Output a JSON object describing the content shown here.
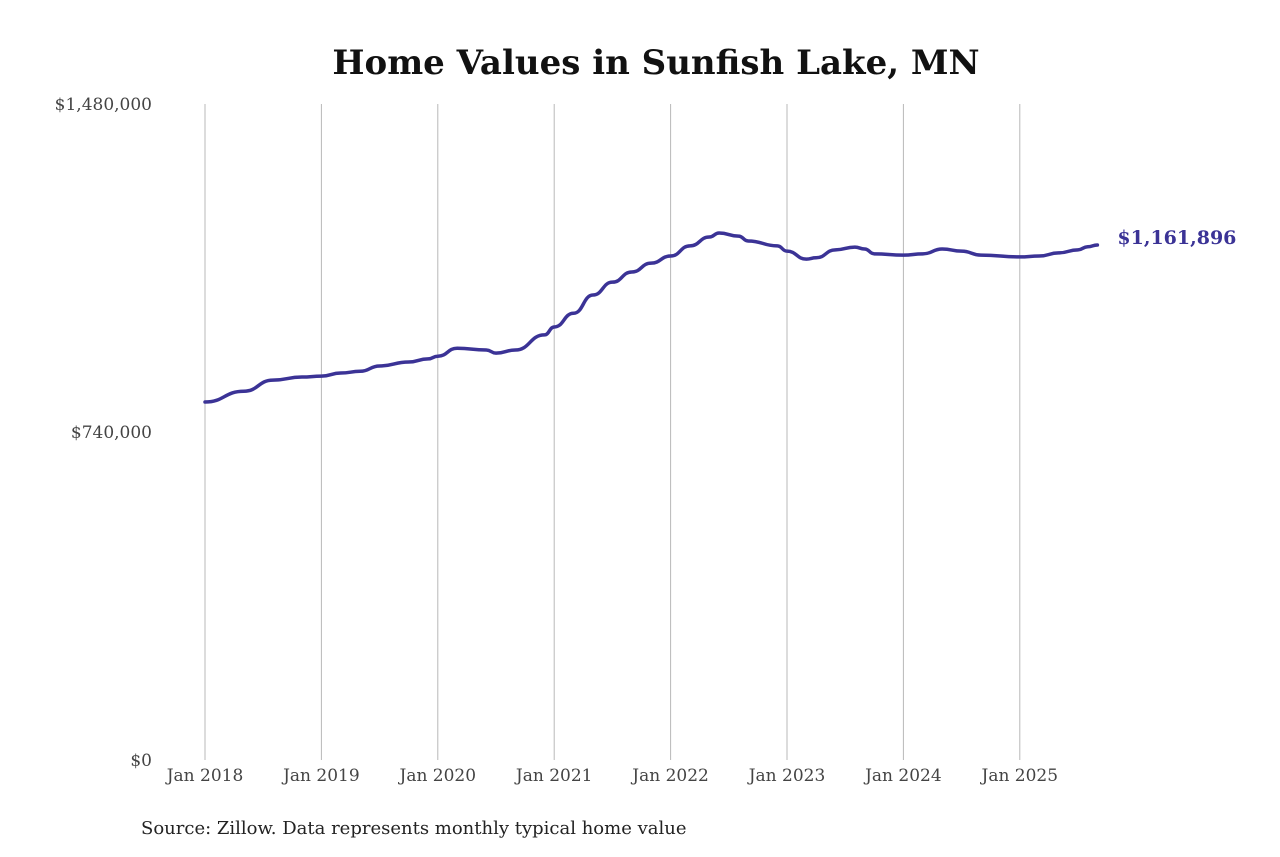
{
  "chart_data": {
    "type": "line",
    "title": "Home Values in Sunfish Lake, MN",
    "xlabel": "",
    "ylabel": "",
    "ylim": [
      0,
      1480000
    ],
    "y_ticks": [
      0,
      740000,
      1480000
    ],
    "y_tick_labels": [
      "$0",
      "$740,000",
      "$1,480,000"
    ],
    "x_ticks": [
      "2018-01",
      "2019-01",
      "2020-01",
      "2021-01",
      "2022-01",
      "2023-01",
      "2024-01",
      "2025-01"
    ],
    "x_tick_labels": [
      "Jan 2018",
      "Jan 2019",
      "Jan 2020",
      "Jan 2021",
      "Jan 2022",
      "Jan 2023",
      "Jan 2024",
      "Jan 2025"
    ],
    "grid": "vertical",
    "line_color": "#3b3396",
    "end_label": "$1,161,896",
    "series": [
      {
        "x": [
          "2018-01",
          "2018-05",
          "2018-08",
          "2018-11",
          "2019-01",
          "2019-03",
          "2019-05",
          "2019-07",
          "2019-10",
          "2019-12",
          "2020-01",
          "2020-03",
          "2020-06",
          "2020-07",
          "2020-09",
          "2020-12",
          "2021-01",
          "2021-03",
          "2021-05",
          "2021-07",
          "2021-09",
          "2021-11",
          "2022-01",
          "2022-03",
          "2022-05",
          "2022-06",
          "2022-08",
          "2022-09",
          "2022-12",
          "2023-01",
          "2023-03",
          "2023-04",
          "2023-06",
          "2023-08",
          "2023-09",
          "2023-10",
          "2024-01",
          "2024-03",
          "2024-05",
          "2024-07",
          "2024-09",
          "2025-01",
          "2025-03",
          "2025-05",
          "2025-07",
          "2025-08",
          "2025-09"
        ],
        "values": [
          807700,
          832000,
          857000,
          864000,
          866000,
          873000,
          877000,
          889000,
          898000,
          905000,
          911000,
          929000,
          925000,
          918000,
          925000,
          959000,
          977000,
          1008000,
          1049000,
          1078000,
          1101000,
          1121000,
          1137000,
          1160000,
          1180000,
          1189000,
          1182000,
          1171000,
          1160000,
          1148000,
          1130000,
          1133000,
          1151000,
          1157000,
          1153000,
          1142000,
          1139000,
          1142000,
          1153000,
          1148000,
          1139000,
          1135000,
          1137000,
          1144000,
          1151000,
          1158000,
          1161896
        ]
      }
    ]
  },
  "source": "Source: Zillow. Data represents monthly typical home value"
}
